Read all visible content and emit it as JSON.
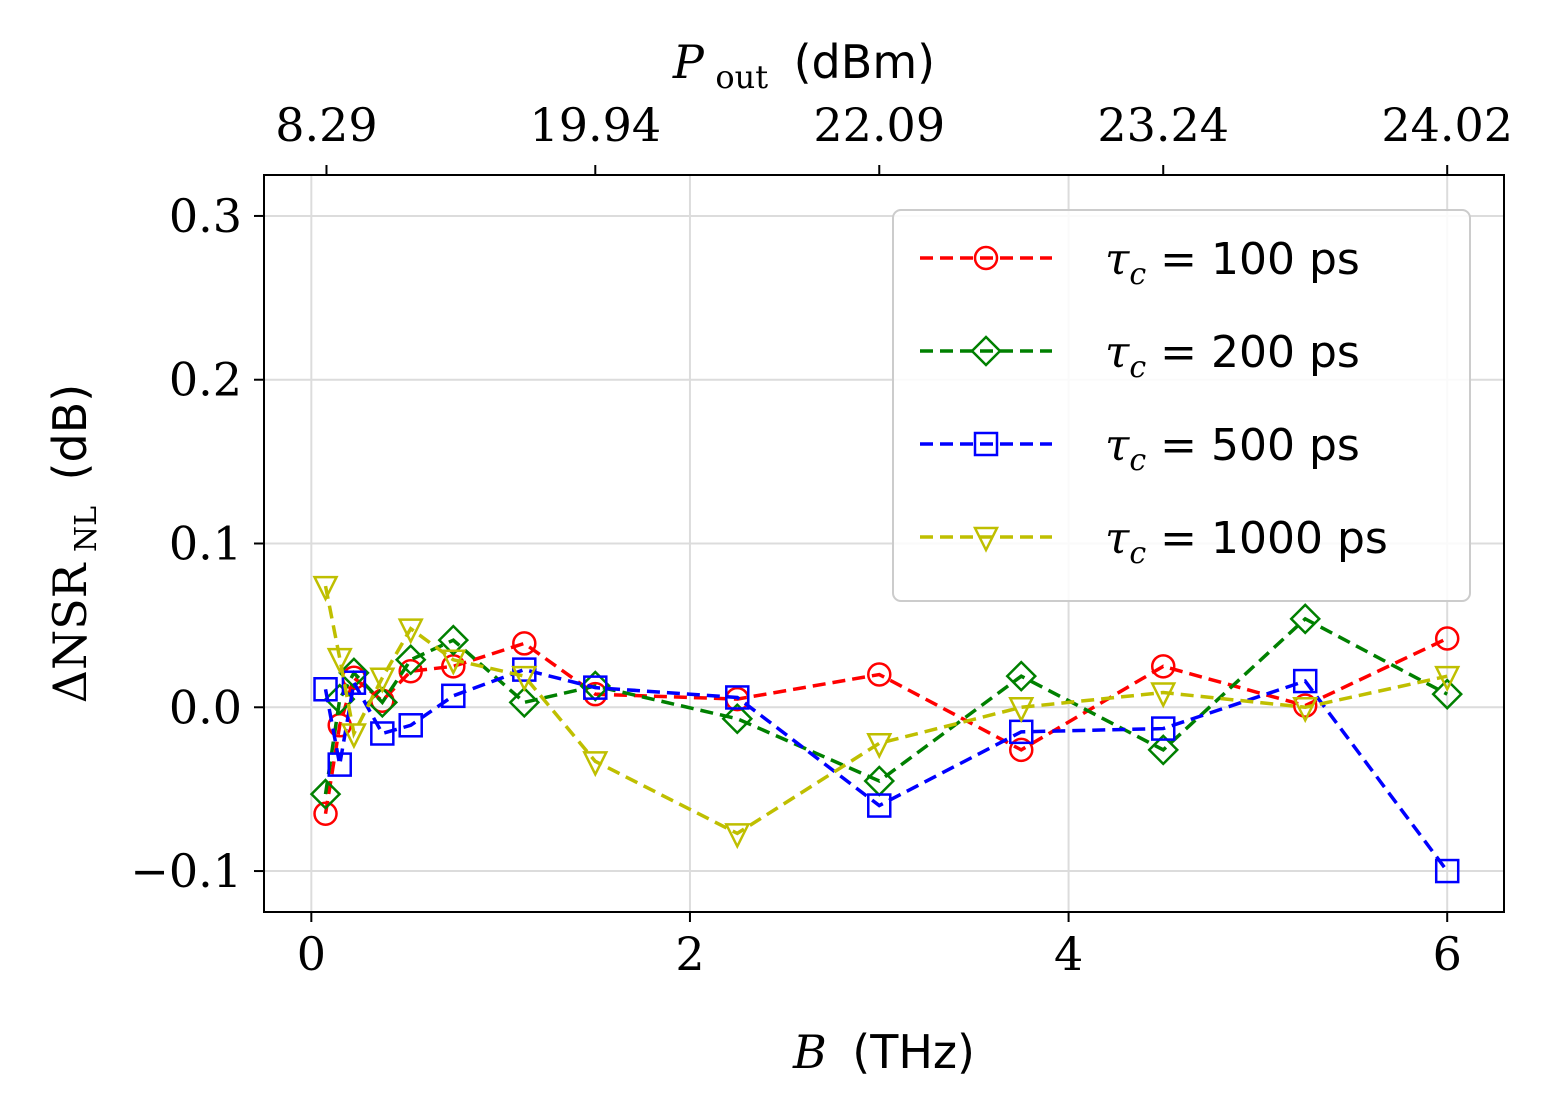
{
  "chart_data": {
    "type": "line",
    "xlabel": {
      "var": "B",
      "unit": "(THz)"
    },
    "ylabel": {
      "prefix": "ΔNSR",
      "sub": "NL",
      "unit": "(dB)"
    },
    "top_xlabel": {
      "var": "P",
      "sub": "out",
      "unit": "(dBm)"
    },
    "xlim": [
      -0.25,
      6.3
    ],
    "ylim": [
      -0.125,
      0.325
    ],
    "x_ticks": [
      0,
      2,
      4,
      6
    ],
    "x_tick_labels": [
      "0",
      "2",
      "4",
      "6"
    ],
    "y_ticks": [
      -0.1,
      0.0,
      0.1,
      0.2,
      0.3
    ],
    "y_tick_labels": [
      "−0.1",
      "0.0",
      "0.1",
      "0.2",
      "0.3"
    ],
    "top_ticks": [
      0.08,
      1.5,
      3.0,
      4.5,
      6.0
    ],
    "top_tick_labels": [
      "8.29",
      "19.94",
      "22.09",
      "23.24",
      "24.02"
    ],
    "grid": true,
    "legend_position": "top-right",
    "series": [
      {
        "name": "100 ps",
        "symbol": "τ",
        "sub": "c",
        "color": "#ff0000",
        "marker": "circle",
        "x": [
          0.075,
          0.15,
          0.225,
          0.375,
          0.525,
          0.75,
          1.125,
          1.5,
          2.25,
          3.0,
          3.75,
          4.5,
          5.25,
          6.0
        ],
        "y": [
          -0.065,
          -0.011,
          0.018,
          0.004,
          0.022,
          0.025,
          0.039,
          0.008,
          0.005,
          0.02,
          -0.026,
          0.025,
          0.001,
          0.042
        ]
      },
      {
        "name": "200 ps",
        "symbol": "τ",
        "sub": "c",
        "color": "#008000",
        "marker": "diamond",
        "x": [
          0.075,
          0.15,
          0.225,
          0.375,
          0.525,
          0.75,
          1.125,
          1.5,
          2.25,
          3.0,
          3.75,
          4.5,
          5.25,
          6.0
        ],
        "y": [
          -0.053,
          0.005,
          0.021,
          0.003,
          0.029,
          0.041,
          0.003,
          0.013,
          -0.007,
          -0.045,
          0.019,
          -0.026,
          0.054,
          0.008
        ]
      },
      {
        "name": "500 ps",
        "symbol": "τ",
        "sub": "c",
        "color": "#0000ff",
        "marker": "square",
        "x": [
          0.075,
          0.15,
          0.225,
          0.375,
          0.525,
          0.75,
          1.125,
          1.5,
          2.25,
          3.0,
          3.75,
          4.5,
          5.25,
          6.0
        ],
        "y": [
          0.011,
          -0.035,
          0.015,
          -0.016,
          -0.011,
          0.007,
          0.023,
          0.012,
          0.006,
          -0.06,
          -0.015,
          -0.013,
          0.016,
          -0.1
        ]
      },
      {
        "name": "1000 ps",
        "symbol": "τ",
        "sub": "c",
        "color": "#bfbf00",
        "marker": "triangle_down",
        "x": [
          0.075,
          0.15,
          0.225,
          0.375,
          0.525,
          0.75,
          1.125,
          1.5,
          2.25,
          3.0,
          3.75,
          4.5,
          5.25,
          6.0
        ],
        "y": [
          0.074,
          0.03,
          -0.016,
          0.018,
          0.048,
          0.029,
          0.019,
          -0.033,
          -0.077,
          -0.022,
          0.0,
          0.009,
          0.0,
          0.019
        ]
      }
    ]
  }
}
